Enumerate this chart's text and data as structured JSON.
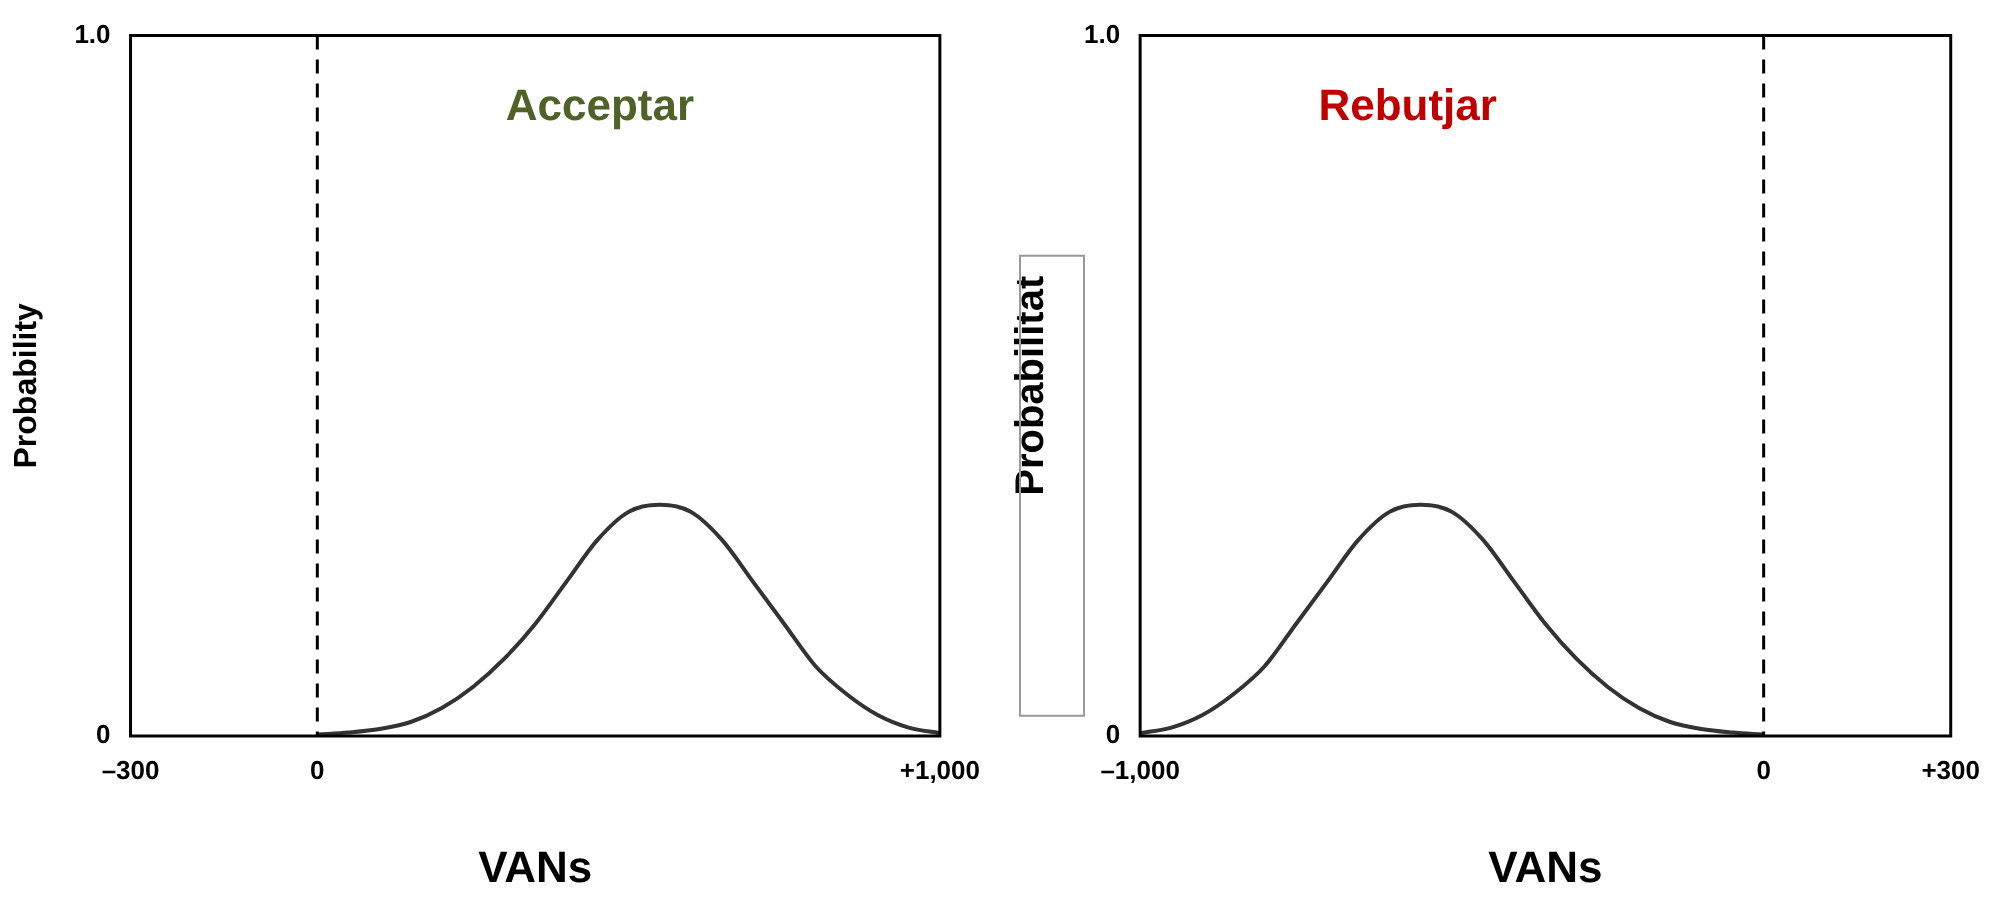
{
  "chart_data": [
    {
      "type": "line",
      "ylabel": "Probability",
      "xlabel": "VANs",
      "annotations": [
        "Acceptar"
      ],
      "x": [
        0,
        50,
        100,
        150,
        200,
        250,
        300,
        350,
        400,
        450,
        500,
        550,
        600,
        650,
        700,
        750,
        800,
        850,
        900,
        950,
        1000
      ],
      "series": [
        {
          "color": "#333333",
          "values": [
            0.002,
            0.005,
            0.01,
            0.02,
            0.04,
            0.07,
            0.11,
            0.16,
            0.22,
            0.28,
            0.32,
            0.33,
            0.32,
            0.28,
            0.22,
            0.16,
            0.1,
            0.06,
            0.03,
            0.012,
            0.004
          ]
        }
      ],
      "xlim": [
        -300,
        1000
      ],
      "xticks": [
        {
          "value": -300,
          "label": "–300"
        },
        0,
        {
          "value": 1000,
          "label": "+1,000"
        }
      ],
      "ylim": [
        0,
        1
      ],
      "yticks": [
        0,
        {
          "value": 1,
          "label": "1.0"
        }
      ],
      "ref_lines": [
        {
          "axis": "x",
          "value": 0,
          "line_style": "dashed",
          "color": "#000000"
        }
      ],
      "grid": false,
      "legend": false,
      "marker": "none",
      "line_style": "solid"
    },
    {
      "type": "line",
      "ylabel": "Probabilitat",
      "xlabel": "VANs",
      "annotations": [
        "Rebutjar"
      ],
      "x": [
        -1000,
        -950,
        -900,
        -850,
        -800,
        -750,
        -700,
        -650,
        -600,
        -550,
        -500,
        -450,
        -400,
        -350,
        -300,
        -250,
        -200,
        -150,
        -100,
        -50,
        0
      ],
      "series": [
        {
          "color": "#333333",
          "values": [
            0.004,
            0.012,
            0.03,
            0.06,
            0.1,
            0.16,
            0.22,
            0.28,
            0.32,
            0.33,
            0.32,
            0.28,
            0.22,
            0.16,
            0.11,
            0.07,
            0.04,
            0.02,
            0.01,
            0.005,
            0.002
          ]
        }
      ],
      "xlim": [
        -1000,
        300
      ],
      "xticks": [
        {
          "value": -1000,
          "label": "–1,000"
        },
        0,
        {
          "value": 300,
          "label": "+300"
        }
      ],
      "ylim": [
        0,
        1
      ],
      "yticks": [
        0,
        {
          "value": 1,
          "label": "1.0"
        }
      ],
      "ref_lines": [
        {
          "axis": "x",
          "value": 0,
          "line_style": "dashed",
          "color": "#000000"
        }
      ],
      "grid": false,
      "legend": false,
      "marker": "none",
      "line_style": "solid"
    }
  ]
}
